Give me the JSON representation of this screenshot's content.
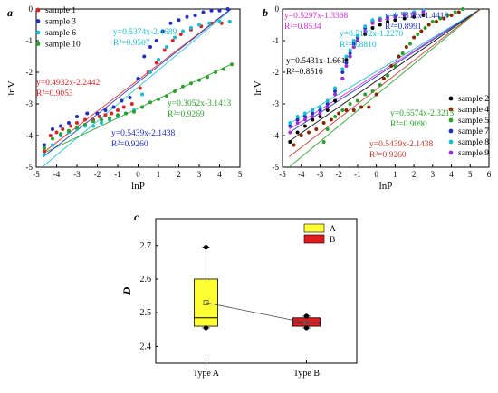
{
  "chart_data": [
    {
      "panel_label": "a",
      "type": "scatter",
      "xlabel": "lnP",
      "ylabel": "lnV",
      "xlim": [
        -5,
        5
      ],
      "ylim": [
        -5,
        0
      ],
      "xticks": [
        -5,
        -4,
        -3,
        -2,
        -1,
        0,
        1,
        2,
        3,
        4,
        5
      ],
      "yticks": [
        -5,
        -4,
        -3,
        -2,
        -1,
        0
      ],
      "legend_position": "top-left",
      "series": [
        {
          "name": "sample 1",
          "color": "#d62728",
          "points": [
            [
              -4.6,
              -4.5
            ],
            [
              -4.3,
              -4.0
            ],
            [
              -4.0,
              -3.9
            ],
            [
              -3.7,
              -3.8
            ],
            [
              -3.3,
              -3.7
            ],
            [
              -3.0,
              -3.6
            ],
            [
              -2.6,
              -3.5
            ],
            [
              -2.2,
              -3.5
            ],
            [
              -1.9,
              -3.4
            ],
            [
              -1.6,
              -3.35
            ],
            [
              -1.3,
              -3.3
            ],
            [
              -1.0,
              -3.2
            ],
            [
              -0.7,
              -3.1
            ],
            [
              -0.3,
              -3.0
            ],
            [
              0.1,
              -2.5
            ],
            [
              0.5,
              -2.0
            ],
            [
              0.9,
              -1.7
            ],
            [
              1.3,
              -1.3
            ],
            [
              1.7,
              -1.0
            ],
            [
              2.1,
              -0.8
            ],
            [
              2.6,
              -0.65
            ],
            [
              3.1,
              -0.55
            ],
            [
              3.6,
              -0.45
            ],
            [
              4.1,
              -0.45
            ],
            [
              4.5,
              -0.4
            ]
          ]
        },
        {
          "name": "sample 3",
          "color": "#1f2fbf",
          "points": [
            [
              -4.6,
              -4.3
            ],
            [
              -4.2,
              -3.8
            ],
            [
              -3.8,
              -3.7
            ],
            [
              -3.4,
              -3.6
            ],
            [
              -3.0,
              -3.4
            ],
            [
              -2.5,
              -3.3
            ],
            [
              -2.0,
              -3.3
            ],
            [
              -1.6,
              -3.2
            ],
            [
              -1.2,
              -3.1
            ],
            [
              -0.8,
              -2.9
            ],
            [
              -0.4,
              -2.8
            ],
            [
              0.0,
              -2.2
            ],
            [
              0.3,
              -1.5
            ],
            [
              0.6,
              -1.2
            ],
            [
              0.9,
              -1.0
            ],
            [
              1.2,
              -0.7
            ],
            [
              1.6,
              -0.45
            ],
            [
              2.0,
              -0.35
            ],
            [
              2.4,
              -0.25
            ],
            [
              2.8,
              -0.2
            ],
            [
              3.2,
              -0.1
            ],
            [
              3.6,
              -0.05
            ],
            [
              4.0,
              -0.05
            ],
            [
              4.4,
              0.0
            ]
          ]
        },
        {
          "name": "sample 6",
          "color": "#17becf",
          "points": [
            [
              -4.6,
              -4.6
            ],
            [
              -4.2,
              -4.3
            ],
            [
              -3.8,
              -4.0
            ],
            [
              -3.4,
              -3.9
            ],
            [
              -3.0,
              -3.8
            ],
            [
              -2.6,
              -3.7
            ],
            [
              -2.2,
              -3.7
            ],
            [
              -1.8,
              -3.6
            ],
            [
              -1.4,
              -3.5
            ],
            [
              -1.0,
              -3.4
            ],
            [
              -0.6,
              -3.3
            ],
            [
              -0.2,
              -3.2
            ],
            [
              0.2,
              -2.7
            ],
            [
              0.6,
              -2.0
            ],
            [
              1.0,
              -1.6
            ],
            [
              1.4,
              -1.2
            ],
            [
              1.8,
              -0.9
            ],
            [
              2.2,
              -0.7
            ],
            [
              2.6,
              -0.6
            ],
            [
              3.0,
              -0.5
            ],
            [
              3.5,
              -0.45
            ],
            [
              4.0,
              -0.4
            ],
            [
              4.5,
              -0.4
            ]
          ]
        },
        {
          "name": "sample 10",
          "color": "#2ca02c",
          "points": [
            [
              -4.6,
              -4.4
            ],
            [
              -4.2,
              -4.1
            ],
            [
              -3.8,
              -3.95
            ],
            [
              -3.4,
              -3.85
            ],
            [
              -3.0,
              -3.75
            ],
            [
              -2.6,
              -3.65
            ],
            [
              -2.2,
              -3.55
            ],
            [
              -1.8,
              -3.5
            ],
            [
              -1.4,
              -3.45
            ],
            [
              -1.0,
              -3.35
            ],
            [
              -0.6,
              -3.3
            ],
            [
              -0.2,
              -3.25
            ],
            [
              0.2,
              -3.1
            ],
            [
              0.6,
              -2.95
            ],
            [
              1.0,
              -2.85
            ],
            [
              1.4,
              -2.75
            ],
            [
              1.8,
              -2.6
            ],
            [
              2.2,
              -2.45
            ],
            [
              2.6,
              -2.35
            ],
            [
              3.0,
              -2.25
            ],
            [
              3.4,
              -2.15
            ],
            [
              3.8,
              -2.0
            ],
            [
              4.2,
              -1.9
            ],
            [
              4.6,
              -1.75
            ]
          ]
        }
      ],
      "fits": [
        {
          "label": "y=0.5374x-2.4689",
          "r2": "R²=0.9507",
          "slope": 0.5374,
          "intercept": -2.4689,
          "color": "#17becf"
        },
        {
          "label": "y=0.4932x-2.2442",
          "r2": "R²=0.9053",
          "slope": 0.4932,
          "intercept": -2.2442,
          "color": "#d62728"
        },
        {
          "label": "y=0.3052x-3.1413",
          "r2": "R²=0.9269",
          "slope": 0.3052,
          "intercept": -3.1413,
          "color": "#2ca02c"
        },
        {
          "label": "y=0.5439x-2.1438",
          "r2": "R²=0.9260",
          "slope": 0.5439,
          "intercept": -2.1438,
          "color": "#1f2fbf"
        }
      ]
    },
    {
      "panel_label": "b",
      "type": "scatter",
      "xlabel": "lnP",
      "ylabel": "lnV",
      "xlim": [
        -5,
        6
      ],
      "ylim": [
        -5,
        0
      ],
      "xticks": [
        -5,
        -4,
        -3,
        -2,
        -1,
        0,
        1,
        2,
        3,
        4,
        5,
        6
      ],
      "yticks": [
        -5,
        -4,
        -3,
        -2,
        -1,
        0
      ],
      "legend_position": "bottom-right",
      "series": [
        {
          "name": "sample 2",
          "color": "#000000",
          "points": [
            [
              -4.6,
              -4.2
            ],
            [
              -4.2,
              -3.9
            ],
            [
              -3.8,
              -3.7
            ],
            [
              -3.4,
              -3.5
            ],
            [
              -3.0,
              -3.4
            ],
            [
              -2.6,
              -3.2
            ],
            [
              -2.2,
              -2.9
            ],
            [
              -1.8,
              -2.2
            ],
            [
              -1.6,
              -1.6
            ],
            [
              -1.4,
              -1.5
            ],
            [
              -1.2,
              -1.2
            ],
            [
              -1.0,
              -1.0
            ],
            [
              -0.6,
              -0.8
            ],
            [
              -0.2,
              -0.6
            ],
            [
              0.2,
              -0.5
            ],
            [
              0.6,
              -0.4
            ],
            [
              1.0,
              -0.35
            ],
            [
              1.5,
              -0.3
            ],
            [
              2.0,
              -0.25
            ],
            [
              2.5,
              -0.2
            ]
          ]
        },
        {
          "name": "sample 4",
          "color": "#8b2500",
          "points": [
            [
              -4.4,
              -4.3
            ],
            [
              -4.0,
              -4.0
            ],
            [
              -3.6,
              -3.9
            ],
            [
              -3.2,
              -3.8
            ],
            [
              -2.8,
              -3.6
            ],
            [
              -2.4,
              -3.5
            ],
            [
              -2.0,
              -3.3
            ],
            [
              -1.6,
              -3.2
            ],
            [
              -1.2,
              -3.2
            ],
            [
              -0.8,
              -3.1
            ],
            [
              -0.4,
              -3.1
            ],
            [
              0.0,
              -2.7
            ],
            [
              0.4,
              -2.2
            ],
            [
              0.8,
              -1.8
            ],
            [
              1.2,
              -1.5
            ],
            [
              1.6,
              -1.2
            ],
            [
              2.0,
              -0.9
            ],
            [
              2.4,
              -0.7
            ],
            [
              2.8,
              -0.5
            ],
            [
              3.2,
              -0.4
            ],
            [
              3.6,
              -0.3
            ],
            [
              4.0,
              -0.2
            ],
            [
              4.4,
              -0.1
            ]
          ]
        },
        {
          "name": "sample 5",
          "color": "#2ca02c",
          "points": [
            [
              -2.8,
              -4.2
            ],
            [
              -2.6,
              -3.8
            ],
            [
              -2.2,
              -3.4
            ],
            [
              -1.8,
              -3.2
            ],
            [
              -1.4,
              -3.0
            ],
            [
              -1.0,
              -2.9
            ],
            [
              -0.6,
              -2.7
            ],
            [
              -0.2,
              -2.6
            ],
            [
              0.2,
              -2.4
            ],
            [
              0.6,
              -2.1
            ],
            [
              1.0,
              -1.8
            ],
            [
              1.4,
              -1.4
            ],
            [
              1.8,
              -1.1
            ],
            [
              2.2,
              -0.8
            ],
            [
              2.6,
              -0.6
            ],
            [
              3.0,
              -0.4
            ],
            [
              3.4,
              -0.3
            ],
            [
              3.8,
              -0.2
            ],
            [
              4.2,
              -0.1
            ],
            [
              4.6,
              0.0
            ]
          ]
        },
        {
          "name": "sample 7",
          "color": "#1f2fbf",
          "points": [
            [
              -4.6,
              -3.7
            ],
            [
              -4.2,
              -3.5
            ],
            [
              -3.8,
              -3.4
            ],
            [
              -3.4,
              -3.3
            ],
            [
              -3.0,
              -3.2
            ],
            [
              -2.6,
              -3.0
            ],
            [
              -2.2,
              -2.6
            ],
            [
              -1.8,
              -2.0
            ],
            [
              -1.6,
              -1.7
            ],
            [
              -1.4,
              -1.4
            ],
            [
              -1.2,
              -1.1
            ],
            [
              -1.0,
              -0.9
            ],
            [
              -0.6,
              -0.6
            ],
            [
              -0.2,
              -0.4
            ],
            [
              0.2,
              -0.3
            ],
            [
              0.6,
              -0.25
            ],
            [
              1.0,
              -0.2
            ],
            [
              1.5,
              -0.15
            ],
            [
              2.0,
              -0.1
            ],
            [
              2.5,
              -0.05
            ]
          ]
        },
        {
          "name": "sample 8",
          "color": "#17becf",
          "points": [
            [
              -4.6,
              -3.6
            ],
            [
              -4.2,
              -3.4
            ],
            [
              -3.8,
              -3.3
            ],
            [
              -3.4,
              -3.2
            ],
            [
              -3.0,
              -3.1
            ],
            [
              -2.6,
              -2.9
            ],
            [
              -2.2,
              -2.5
            ],
            [
              -1.8,
              -1.9
            ],
            [
              -1.6,
              -1.5
            ],
            [
              -1.4,
              -1.3
            ],
            [
              -1.2,
              -1.0
            ],
            [
              -1.0,
              -0.85
            ],
            [
              -0.6,
              -0.55
            ],
            [
              -0.2,
              -0.35
            ],
            [
              0.2,
              -0.3
            ],
            [
              0.6,
              -0.25
            ],
            [
              1.0,
              -0.2
            ],
            [
              1.5,
              -0.15
            ],
            [
              2.0,
              -0.1
            ],
            [
              2.5,
              -0.05
            ]
          ]
        },
        {
          "name": "sample 9",
          "color": "#9b30d6",
          "points": [
            [
              -4.6,
              -3.9
            ],
            [
              -4.2,
              -3.6
            ],
            [
              -3.8,
              -3.5
            ],
            [
              -3.4,
              -3.4
            ],
            [
              -3.0,
              -3.3
            ],
            [
              -2.6,
              -3.1
            ],
            [
              -2.2,
              -2.7
            ],
            [
              -1.8,
              -2.2
            ],
            [
              -1.6,
              -1.8
            ],
            [
              -1.4,
              -1.5
            ],
            [
              -1.2,
              -1.2
            ],
            [
              -1.0,
              -1.0
            ],
            [
              -0.6,
              -0.7
            ],
            [
              -0.2,
              -0.45
            ],
            [
              0.2,
              -0.35
            ],
            [
              0.6,
              -0.3
            ],
            [
              1.0,
              -0.25
            ],
            [
              1.5,
              -0.2
            ],
            [
              2.0,
              -0.15
            ],
            [
              2.5,
              -0.1
            ]
          ]
        }
      ],
      "fits": [
        {
          "label": "y=0.5297x-1.3368",
          "r2": "R²=0.8534",
          "slope": 0.5297,
          "intercept": -1.3368,
          "color": "#d62ad6"
        },
        {
          "label": "y=0.5316x-1.4418",
          "r2": "R²=0.8991",
          "slope": 0.5316,
          "intercept": -1.4418,
          "color": "#1f2fbf"
        },
        {
          "label": "y=0.5172x-1.2270",
          "r2": "R²=0.8810",
          "slope": 0.5172,
          "intercept": -1.227,
          "color": "#17becf"
        },
        {
          "label": "y=0.5431x-1.661",
          "r2": "R²=0.8516",
          "slope": 0.5431,
          "intercept": -1.661,
          "color": "#000000"
        },
        {
          "label": "y=0.6574x-2.3213",
          "r2": "R²=0.9090",
          "slope": 0.6574,
          "intercept": -2.3213,
          "color": "#2ca02c"
        },
        {
          "label": "y=0.5439x-2.1438",
          "r2": "R²=0.9260",
          "slope": 0.5439,
          "intercept": -2.1438,
          "color": "#c0392b"
        }
      ]
    },
    {
      "panel_label": "c",
      "type": "box",
      "ylabel": "D",
      "ylim": [
        2.35,
        2.78
      ],
      "yticks": [
        2.4,
        2.5,
        2.6,
        2.7
      ],
      "categories": [
        "Type A",
        "Type B"
      ],
      "legend": [
        {
          "label": "A",
          "color": "#ffff33"
        },
        {
          "label": "B",
          "color": "#e31a1c"
        }
      ],
      "boxes": [
        {
          "category": "Type A",
          "min": 2.455,
          "q1": 2.46,
          "median": 2.485,
          "q3": 2.6,
          "max": 2.695,
          "mean": 2.53,
          "points": [
            2.695,
            2.455
          ],
          "color": "#ffff33"
        },
        {
          "category": "Type B",
          "min": 2.455,
          "q1": 2.46,
          "median": 2.47,
          "q3": 2.485,
          "max": 2.49,
          "mean": 2.47,
          "points": [
            2.49,
            2.455
          ],
          "color": "#e31a1c"
        }
      ]
    }
  ]
}
